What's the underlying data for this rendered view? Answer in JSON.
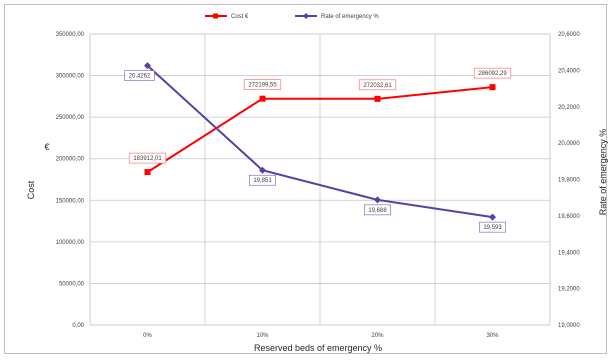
{
  "chart_data": {
    "type": "line",
    "categories": [
      "0%",
      "10%",
      "20%",
      "30%"
    ],
    "xlabel": "Reserved beds of emergency %",
    "ylabel": "Cost",
    "ylabel_unit": "€",
    "y2label": "Rate of emergency %",
    "ylim": [
      0,
      350000
    ],
    "y2lim": [
      19,
      20.6
    ],
    "y_ticks": [
      "0,00",
      "50000,00",
      "100000,00",
      "150000,00",
      "200000,00",
      "250000,00",
      "300000,00",
      "350000,00"
    ],
    "y2_ticks": [
      "19,0000",
      "19,2000",
      "19,4000",
      "19,6000",
      "19,8000",
      "20,0000",
      "20,2000",
      "20,4000",
      "20,6000"
    ],
    "grid": true,
    "legend_position": "top",
    "series": [
      {
        "name": "Cost €",
        "axis": "left",
        "color": "#ff0000",
        "values": [
          183912.01,
          272199.55,
          272032.61,
          286092.29
        ],
        "labels": [
          "183912,01",
          "272199,55",
          "272032,61",
          "286092,29"
        ]
      },
      {
        "name": "Rate of emergency %",
        "axis": "right",
        "color": "#5b3fa8",
        "values": [
          20.4262,
          19.851,
          19.688,
          19.593
        ],
        "labels": [
          "20,4262",
          "19,851",
          "19,688",
          "19,593"
        ]
      }
    ]
  }
}
